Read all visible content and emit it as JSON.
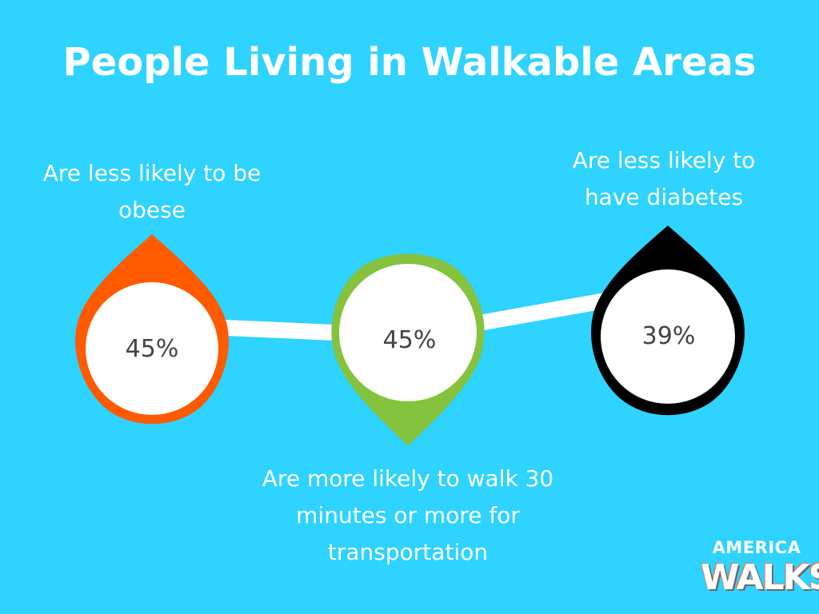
{
  "title": "People Living in Walkable Areas",
  "colors": {
    "background": "#2ed3ff",
    "orange": "#ff5a00",
    "green": "#85c23e",
    "black": "#000000",
    "text": "#ffffff",
    "value_text": "#444444"
  },
  "stats": [
    {
      "caption": "Are less likely to be obese",
      "value": "45%",
      "color": "#ff5a00",
      "pointer": "up"
    },
    {
      "caption": "Are more likely to walk 30 minutes or more for transportation",
      "value": "45%",
      "color": "#85c23e",
      "pointer": "down"
    },
    {
      "caption": "Are less likely to have diabetes",
      "value": "39%",
      "color": "#000000",
      "pointer": "up"
    }
  ],
  "logo": {
    "line1": "AMERICA",
    "line2": "WALKS"
  }
}
